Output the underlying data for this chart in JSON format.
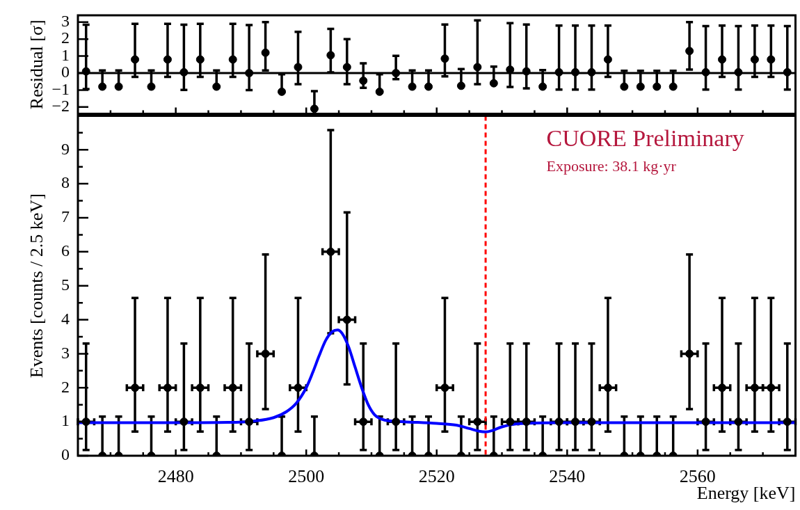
{
  "chart_data": [
    {
      "type": "scatter",
      "ylabel": "Residual [σ]",
      "marker": "circle",
      "legend": false,
      "grid": false,
      "tick_labels": "y",
      "x": [
        2466.25,
        2468.75,
        2471.25,
        2473.75,
        2476.25,
        2478.75,
        2481.25,
        2483.75,
        2486.25,
        2488.75,
        2491.25,
        2493.75,
        2496.25,
        2498.75,
        2501.25,
        2503.75,
        2506.25,
        2508.75,
        2511.25,
        2513.75,
        2516.25,
        2518.75,
        2521.25,
        2523.75,
        2526.25,
        2528.75,
        2531.25,
        2533.75,
        2536.25,
        2538.75,
        2541.25,
        2543.75,
        2546.25,
        2548.75,
        2551.25,
        2553.75,
        2556.25,
        2558.75,
        2561.25,
        2563.75,
        2566.25,
        2568.75,
        2571.25,
        2573.75
      ],
      "xlim": [
        2465,
        2575
      ],
      "xticks": [
        {
          "value": 2470,
          "label": null
        },
        {
          "value": 2475,
          "label": null
        },
        2480,
        {
          "value": 2485,
          "label": null
        },
        {
          "value": 2490,
          "label": null
        },
        {
          "value": 2495,
          "label": null
        },
        2500,
        {
          "value": 2505,
          "label": null
        },
        {
          "value": 2510,
          "label": null
        },
        {
          "value": 2515,
          "label": null
        },
        2520,
        {
          "value": 2525,
          "label": null
        },
        {
          "value": 2530,
          "label": null
        },
        {
          "value": 2535,
          "label": null
        },
        2540,
        {
          "value": 2545,
          "label": null
        },
        {
          "value": 2550,
          "label": null
        },
        {
          "value": 2555,
          "label": null
        },
        2560,
        {
          "value": 2565,
          "label": null
        },
        {
          "value": 2570,
          "label": null
        }
      ],
      "ylim": [
        -2.4,
        3.4
      ],
      "yticks": [
        -2,
        -1,
        0,
        1,
        2,
        3
      ],
      "ref_lines": [
        {
          "axis": "y",
          "value": 0,
          "color": "#000000",
          "line_style": "solid"
        }
      ],
      "series": [
        {
          "type": "scatter",
          "color": "#000000",
          "values": [
            0.1,
            -0.8,
            -0.8,
            0.8,
            -0.8,
            0.8,
            0.05,
            0.8,
            -0.8,
            0.8,
            0,
            1.2,
            -1.1,
            0.35,
            -2.1,
            1.05,
            0.35,
            -0.45,
            -1.1,
            0,
            -0.8,
            -0.8,
            0.85,
            -0.75,
            0.35,
            -0.6,
            0.2,
            0.1,
            -0.8,
            0.05,
            0.05,
            0.05,
            0.8,
            -0.8,
            -0.8,
            -0.8,
            -0.8,
            1.3,
            0.05,
            0.8,
            0.05,
            0.8,
            0.8,
            0.05
          ],
          "errors": [
            [
              -0.94,
              2.85
            ],
            [
              -0.8,
              0.15
            ],
            [
              -0.8,
              0.15
            ],
            [
              -0.22,
              2.9
            ],
            [
              -0.8,
              0.15
            ],
            [
              -0.22,
              2.9
            ],
            [
              -0.99,
              2.85
            ],
            [
              -0.22,
              2.9
            ],
            [
              -0.8,
              0.15
            ],
            [
              -0.22,
              2.9
            ],
            [
              -1,
              2.83
            ],
            [
              0.15,
              3
            ],
            [
              -1.1,
              -0.07
            ],
            [
              -0.65,
              2.43
            ],
            [
              -2.1,
              -1.06
            ],
            [
              0.04,
              2.6
            ],
            [
              -0.65,
              2
            ],
            [
              -0.87,
              0.57
            ],
            [
              -1.1,
              -0.07
            ],
            [
              -0.36,
              1.01
            ],
            [
              -0.8,
              0.15
            ],
            [
              -0.8,
              0.15
            ],
            [
              -0.19,
              2.86
            ],
            [
              -0.75,
              0.24
            ],
            [
              -0.66,
              3.1
            ],
            [
              -0.6,
              0.38
            ],
            [
              -0.82,
              2.94
            ],
            [
              -0.9,
              2.86
            ],
            [
              -0.8,
              0.17
            ],
            [
              -0.97,
              2.8
            ],
            [
              -0.97,
              2.8
            ],
            [
              -0.97,
              2.8
            ],
            [
              -0.23,
              2.8
            ],
            [
              -0.8,
              0.13
            ],
            [
              -0.8,
              0.13
            ],
            [
              -0.8,
              0.13
            ],
            [
              -0.8,
              0.13
            ],
            [
              0.21,
              3
            ],
            [
              -0.97,
              2.77
            ],
            [
              -0.23,
              2.8
            ],
            [
              -0.97,
              2.77
            ],
            [
              -0.23,
              2.8
            ],
            [
              -0.23,
              2.8
            ],
            [
              -0.97,
              2.77
            ]
          ]
        }
      ]
    },
    {
      "type": "scatter",
      "xlabel": "Energy [keV]",
      "ylabel": "Events [counts / 2.5 keV]",
      "marker": "circle",
      "legend": false,
      "grid": false,
      "annotations": [
        "CUORE Preliminary",
        "Exposure: 38.1 kg·yr"
      ],
      "x": [
        2466.25,
        2468.75,
        2471.25,
        2473.75,
        2476.25,
        2478.75,
        2481.25,
        2483.75,
        2486.25,
        2488.75,
        2491.25,
        2493.75,
        2496.25,
        2498.75,
        2501.25,
        2503.75,
        2506.25,
        2508.75,
        2511.25,
        2513.75,
        2516.25,
        2518.75,
        2521.25,
        2523.75,
        2526.25,
        2528.75,
        2531.25,
        2533.75,
        2536.25,
        2538.75,
        2541.25,
        2543.75,
        2546.25,
        2548.75,
        2551.25,
        2553.75,
        2556.25,
        2558.75,
        2561.25,
        2563.75,
        2566.25,
        2568.75,
        2571.25,
        2573.75
      ],
      "xlim": [
        2465,
        2575
      ],
      "xticks": [
        {
          "value": 2470,
          "label": null
        },
        {
          "value": 2475,
          "label": null
        },
        2480,
        {
          "value": 2485,
          "label": null
        },
        {
          "value": 2490,
          "label": null
        },
        {
          "value": 2495,
          "label": null
        },
        2500,
        {
          "value": 2505,
          "label": null
        },
        {
          "value": 2510,
          "label": null
        },
        {
          "value": 2515,
          "label": null
        },
        2520,
        {
          "value": 2525,
          "label": null
        },
        {
          "value": 2530,
          "label": null
        },
        {
          "value": 2535,
          "label": null
        },
        2540,
        {
          "value": 2545,
          "label": null
        },
        {
          "value": 2550,
          "label": null
        },
        {
          "value": 2555,
          "label": null
        },
        2560,
        {
          "value": 2565,
          "label": null
        },
        {
          "value": 2570,
          "label": null
        }
      ],
      "ylim": [
        0,
        10
      ],
      "yticks": [
        0,
        {
          "value": 0.5,
          "label": null
        },
        1,
        {
          "value": 1.5,
          "label": null
        },
        2,
        {
          "value": 2.5,
          "label": null
        },
        3,
        {
          "value": 3.5,
          "label": null
        },
        4,
        {
          "value": 4.5,
          "label": null
        },
        5,
        {
          "value": 5.5,
          "label": null
        },
        6,
        {
          "value": 6.5,
          "label": null
        },
        7,
        {
          "value": 7.5,
          "label": null
        },
        8,
        {
          "value": 8.5,
          "label": null
        },
        9,
        {
          "value": 9.5,
          "label": null
        }
      ],
      "ref_lines": [
        {
          "axis": "x",
          "value": 2527.5,
          "color": "#ff0000",
          "line_style": "dashed"
        }
      ],
      "series": [
        {
          "type": "scatter",
          "color": "#000000",
          "values": [
            1,
            0,
            0,
            2,
            0,
            2,
            1,
            2,
            0,
            2,
            1,
            3,
            0,
            2,
            0,
            6,
            4,
            1,
            0,
            1,
            0,
            0,
            2,
            0,
            1,
            0,
            1,
            1,
            0,
            1,
            1,
            1,
            2,
            0,
            0,
            0,
            0,
            3,
            1,
            2,
            1,
            2,
            2,
            1
          ],
          "errors": [
            [
              0.17,
              3.3
            ],
            [
              0,
              1.15
            ],
            [
              0,
              1.15
            ],
            [
              0.71,
              4.64
            ],
            [
              0,
              1.15
            ],
            [
              0.71,
              4.64
            ],
            [
              0.17,
              3.3
            ],
            [
              0.71,
              4.64
            ],
            [
              0,
              1.15
            ],
            [
              0.71,
              4.64
            ],
            [
              0.17,
              3.3
            ],
            [
              1.37,
              5.92
            ],
            [
              0,
              1.15
            ],
            [
              0.71,
              4.64
            ],
            [
              0,
              1.15
            ],
            [
              3.6,
              9.58
            ],
            [
              2.1,
              7.16
            ],
            [
              0.17,
              3.3
            ],
            [
              0,
              1.15
            ],
            [
              0.17,
              3.3
            ],
            [
              0,
              1.15
            ],
            [
              0,
              1.15
            ],
            [
              0.71,
              4.64
            ],
            [
              0,
              1.15
            ],
            [
              0.17,
              3.3
            ],
            [
              0,
              1.15
            ],
            [
              0.17,
              3.3
            ],
            [
              0.17,
              3.3
            ],
            [
              0,
              1.15
            ],
            [
              0.17,
              3.3
            ],
            [
              0.17,
              3.3
            ],
            [
              0.17,
              3.3
            ],
            [
              0.71,
              4.64
            ],
            [
              0,
              1.15
            ],
            [
              0,
              1.15
            ],
            [
              0,
              1.15
            ],
            [
              0,
              1.15
            ],
            [
              1.37,
              5.92
            ],
            [
              0.17,
              3.3
            ],
            [
              0.71,
              4.64
            ],
            [
              0.17,
              3.3
            ],
            [
              0.71,
              4.64
            ],
            [
              0.71,
              4.64
            ],
            [
              0.17,
              3.3
            ]
          ],
          "xerrors": [
            1.25,
            null,
            null,
            1.25,
            null,
            1.25,
            1.25,
            1.25,
            null,
            1.25,
            1.25,
            1.25,
            null,
            1.25,
            null,
            1.25,
            1.25,
            1.25,
            null,
            1.25,
            null,
            null,
            1.25,
            null,
            1.25,
            null,
            1.25,
            1.25,
            null,
            1.25,
            1.25,
            1.25,
            1.25,
            null,
            null,
            null,
            null,
            1.25,
            1.25,
            1.25,
            1.25,
            1.25,
            1.25,
            1.25
          ]
        },
        {
          "type": "line",
          "color": "#0000ff",
          "marker": "none",
          "x": [
            2465,
            2480,
            2488,
            2492,
            2495,
            2497,
            2498.5,
            2500,
            2501,
            2502,
            2503,
            2504,
            2504.8,
            2505.5,
            2506.5,
            2507.5,
            2508.5,
            2509.5,
            2510.5,
            2512,
            2515,
            2520,
            2523,
            2525,
            2526.5,
            2527.5,
            2528.5,
            2530,
            2532,
            2535,
            2540,
            2575
          ],
          "values": [
            0.97,
            0.97,
            0.98,
            1.02,
            1.12,
            1.3,
            1.55,
            2,
            2.45,
            2.95,
            3.4,
            3.65,
            3.7,
            3.6,
            3.2,
            2.6,
            2,
            1.5,
            1.2,
            1.05,
            1,
            0.95,
            0.9,
            0.8,
            0.72,
            0.7,
            0.74,
            0.85,
            0.93,
            0.96,
            0.97,
            0.97
          ]
        }
      ]
    }
  ]
}
